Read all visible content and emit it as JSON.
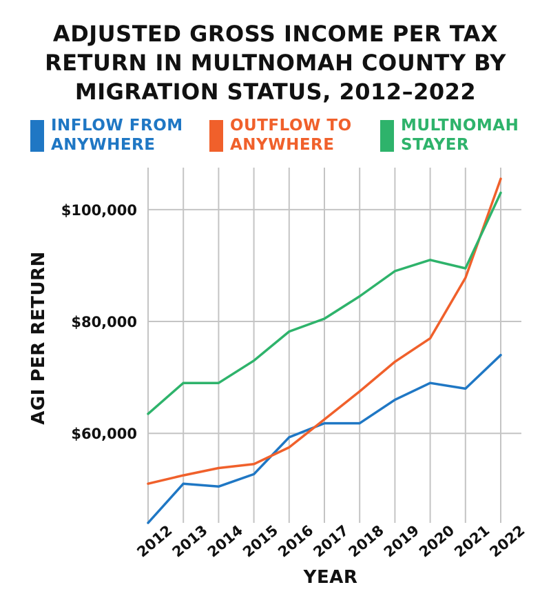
{
  "title_lines": [
    "ADJUSTED GROSS INCOME PER TAX",
    "RETURN IN MULTNOMAH COUNTY BY",
    "MIGRATION STATUS, 2012–2022"
  ],
  "legend": [
    {
      "line1": "INFLOW FROM",
      "line2": "ANYWHERE",
      "color": "#1f77c4"
    },
    {
      "line1": "OUTFLOW TO",
      "line2": "ANYWHERE",
      "color": "#f0602b"
    },
    {
      "line1": "MULTNOMAH",
      "line2": "STAYER",
      "color": "#2eb36b"
    }
  ],
  "chart_data": {
    "type": "line",
    "title": "ADJUSTED GROSS INCOME PER TAX RETURN IN MULTNOMAH COUNTY BY MIGRATION STATUS, 2012–2022",
    "xlabel": "YEAR",
    "ylabel": "AGI PER RETURN",
    "x": [
      "2012",
      "2013",
      "2014",
      "2015",
      "2016",
      "2017",
      "2018",
      "2019",
      "2020",
      "2021",
      "2022"
    ],
    "ylim": [
      44000,
      107500
    ],
    "yticks": [
      60000,
      80000,
      100000
    ],
    "ytick_labels": [
      "$60,000",
      "$80,000",
      "$100,000"
    ],
    "grid": true,
    "legend_position": "top",
    "series": [
      {
        "name": "INFLOW FROM ANYWHERE",
        "color": "#1f77c4",
        "values": [
          44000,
          51000,
          50500,
          52700,
          59300,
          61800,
          61800,
          66000,
          69000,
          68000,
          74000
        ]
      },
      {
        "name": "OUTFLOW TO ANYWHERE",
        "color": "#f0602b",
        "values": [
          51000,
          52500,
          53800,
          54500,
          57500,
          62500,
          67500,
          72800,
          77000,
          87800,
          105500
        ]
      },
      {
        "name": "MULTNOMAH STAYER",
        "color": "#2eb36b",
        "values": [
          63500,
          69000,
          69000,
          73000,
          78200,
          80500,
          84500,
          89000,
          91000,
          89500,
          103000
        ]
      }
    ]
  }
}
